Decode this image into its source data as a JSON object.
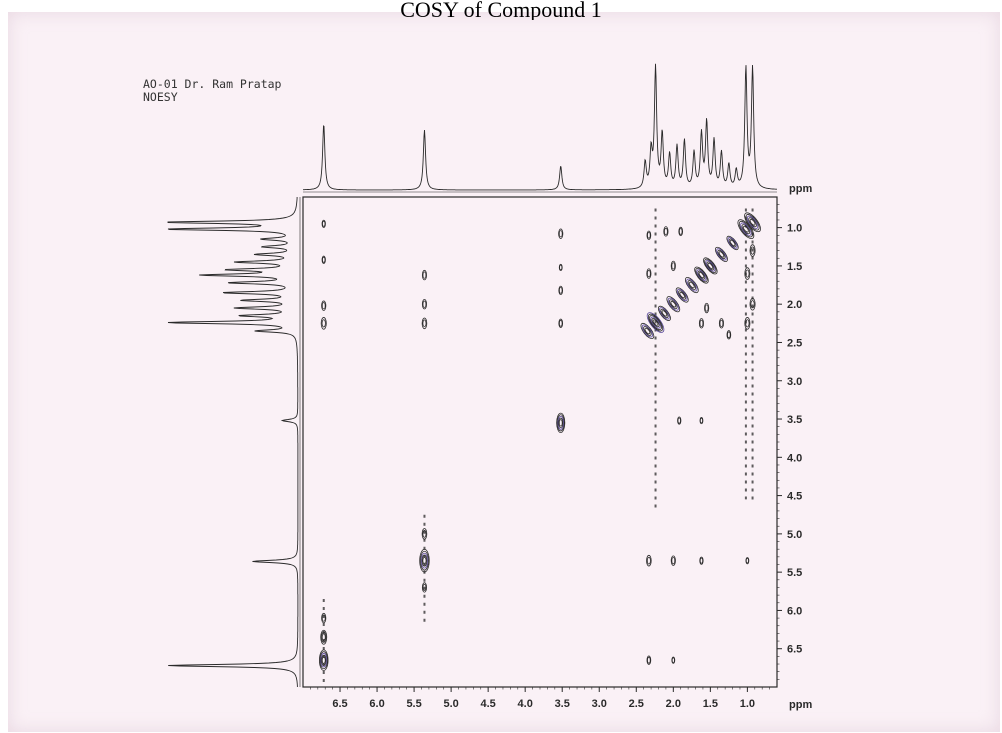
{
  "page": {
    "title": "COSY of Compound 1",
    "header_lines": [
      "AO-01 Dr. Ram Pratap",
      "NOESY"
    ],
    "background_color": "#faf1f6",
    "ink_color": "#2a2a2a",
    "contour_accent": "#5a4a9a"
  },
  "chart_data": {
    "type": "heatmap",
    "title": "COSY of Compound 1",
    "xlabel": "ppm",
    "ylabel": "ppm",
    "xlim": [
      7.0,
      0.6
    ],
    "ylim": [
      0.6,
      7.0
    ],
    "x_ticks": [
      "6.5",
      "6.0",
      "5.5",
      "5.0",
      "4.5",
      "4.0",
      "3.5",
      "3.0",
      "2.5",
      "2.0",
      "1.5",
      "1.0"
    ],
    "y_ticks": [
      "1.0",
      "1.5",
      "2.0",
      "2.5",
      "3.0",
      "3.5",
      "4.0",
      "4.5",
      "5.0",
      "5.5",
      "6.0",
      "6.5"
    ],
    "f2_projection_peaks": [
      {
        "ppm": 6.72,
        "height": 0.55
      },
      {
        "ppm": 5.36,
        "height": 0.5
      },
      {
        "ppm": 3.52,
        "height": 0.2
      },
      {
        "ppm": 2.38,
        "height": 0.22
      },
      {
        "ppm": 2.3,
        "height": 0.3
      },
      {
        "ppm": 2.24,
        "height": 1.0
      },
      {
        "ppm": 2.15,
        "height": 0.45
      },
      {
        "ppm": 2.05,
        "height": 0.28
      },
      {
        "ppm": 1.95,
        "height": 0.35
      },
      {
        "ppm": 1.85,
        "height": 0.4
      },
      {
        "ppm": 1.72,
        "height": 0.3
      },
      {
        "ppm": 1.62,
        "height": 0.45
      },
      {
        "ppm": 1.55,
        "height": 0.55
      },
      {
        "ppm": 1.45,
        "height": 0.4
      },
      {
        "ppm": 1.35,
        "height": 0.3
      },
      {
        "ppm": 1.25,
        "height": 0.2
      },
      {
        "ppm": 1.15,
        "height": 0.15
      },
      {
        "ppm": 1.02,
        "height": 1.0
      },
      {
        "ppm": 0.93,
        "height": 1.0
      }
    ],
    "f1_projection_peaks": [
      {
        "ppm": 0.93,
        "height": 1.0
      },
      {
        "ppm": 1.02,
        "height": 1.0
      },
      {
        "ppm": 1.15,
        "height": 0.25
      },
      {
        "ppm": 1.25,
        "height": 0.25
      },
      {
        "ppm": 1.35,
        "height": 0.3
      },
      {
        "ppm": 1.45,
        "height": 0.45
      },
      {
        "ppm": 1.55,
        "height": 0.5
      },
      {
        "ppm": 1.62,
        "height": 0.7
      },
      {
        "ppm": 1.72,
        "height": 0.5
      },
      {
        "ppm": 1.85,
        "height": 0.55
      },
      {
        "ppm": 1.95,
        "height": 0.4
      },
      {
        "ppm": 2.05,
        "height": 0.45
      },
      {
        "ppm": 2.15,
        "height": 0.4
      },
      {
        "ppm": 2.24,
        "height": 1.0
      },
      {
        "ppm": 2.35,
        "height": 0.3
      },
      {
        "ppm": 3.52,
        "height": 0.12
      },
      {
        "ppm": 5.36,
        "height": 0.35
      },
      {
        "ppm": 6.72,
        "height": 1.0
      }
    ],
    "cross_peaks": [
      {
        "x": 6.72,
        "y": 6.65,
        "size": 1.6
      },
      {
        "x": 6.72,
        "y": 6.35,
        "size": 1.0
      },
      {
        "x": 6.72,
        "y": 6.1,
        "size": 0.6
      },
      {
        "x": 6.72,
        "y": 2.25,
        "size": 0.8
      },
      {
        "x": 6.72,
        "y": 2.02,
        "size": 0.6
      },
      {
        "x": 6.72,
        "y": 1.42,
        "size": 0.4
      },
      {
        "x": 6.72,
        "y": 0.95,
        "size": 0.4
      },
      {
        "x": 5.36,
        "y": 5.35,
        "size": 1.8
      },
      {
        "x": 5.36,
        "y": 5.0,
        "size": 0.7
      },
      {
        "x": 5.36,
        "y": 5.7,
        "size": 0.6
      },
      {
        "x": 5.36,
        "y": 2.25,
        "size": 0.7
      },
      {
        "x": 5.36,
        "y": 2.0,
        "size": 0.6
      },
      {
        "x": 5.36,
        "y": 1.62,
        "size": 0.6
      },
      {
        "x": 3.52,
        "y": 3.55,
        "size": 1.5
      },
      {
        "x": 3.52,
        "y": 2.25,
        "size": 0.5
      },
      {
        "x": 3.52,
        "y": 1.82,
        "size": 0.5
      },
      {
        "x": 3.52,
        "y": 1.52,
        "size": 0.3
      },
      {
        "x": 3.52,
        "y": 1.08,
        "size": 0.6
      },
      {
        "x": 2.33,
        "y": 5.35,
        "size": 0.7
      },
      {
        "x": 2.0,
        "y": 5.35,
        "size": 0.6
      },
      {
        "x": 1.62,
        "y": 5.35,
        "size": 0.4
      },
      {
        "x": 2.33,
        "y": 6.65,
        "size": 0.5
      },
      {
        "x": 2.0,
        "y": 6.65,
        "size": 0.3
      },
      {
        "x": 1.92,
        "y": 3.52,
        "size": 0.4
      },
      {
        "x": 1.62,
        "y": 3.52,
        "size": 0.3
      },
      {
        "x": 1.0,
        "y": 5.35,
        "size": 0.3
      },
      {
        "x": 2.33,
        "y": 1.1,
        "size": 0.5
      },
      {
        "x": 2.1,
        "y": 1.05,
        "size": 0.6
      },
      {
        "x": 1.9,
        "y": 1.05,
        "size": 0.5
      },
      {
        "x": 2.33,
        "y": 1.6,
        "size": 0.6
      },
      {
        "x": 2.0,
        "y": 1.5,
        "size": 0.6
      },
      {
        "x": 1.62,
        "y": 2.25,
        "size": 0.6
      },
      {
        "x": 1.55,
        "y": 2.05,
        "size": 0.6
      },
      {
        "x": 1.35,
        "y": 2.25,
        "size": 0.6
      },
      {
        "x": 1.25,
        "y": 2.4,
        "size": 0.5
      },
      {
        "x": 1.0,
        "y": 2.25,
        "size": 0.8
      },
      {
        "x": 0.93,
        "y": 2.0,
        "size": 0.8
      },
      {
        "x": 1.0,
        "y": 1.6,
        "size": 0.8
      },
      {
        "x": 0.93,
        "y": 1.3,
        "size": 0.8
      }
    ],
    "diagonal_peaks": [
      {
        "ppm": 0.93,
        "size": 1.8
      },
      {
        "ppm": 1.02,
        "size": 1.8
      },
      {
        "ppm": 1.2,
        "size": 1.2
      },
      {
        "ppm": 1.35,
        "size": 1.3
      },
      {
        "ppm": 1.5,
        "size": 1.5
      },
      {
        "ppm": 1.62,
        "size": 1.5
      },
      {
        "ppm": 1.75,
        "size": 1.4
      },
      {
        "ppm": 1.88,
        "size": 1.3
      },
      {
        "ppm": 2.0,
        "size": 1.4
      },
      {
        "ppm": 2.12,
        "size": 1.3
      },
      {
        "ppm": 2.24,
        "size": 1.9
      },
      {
        "ppm": 2.35,
        "size": 1.4
      }
    ],
    "streak_columns": [
      {
        "ppm": 2.24,
        "from": 0.75,
        "to": 4.7
      },
      {
        "ppm": 1.02,
        "from": 0.75,
        "to": 4.55
      },
      {
        "ppm": 0.93,
        "from": 0.75,
        "to": 4.6
      },
      {
        "ppm": 6.72,
        "from": 5.85,
        "to": 6.95
      },
      {
        "ppm": 5.36,
        "from": 4.75,
        "to": 6.2
      }
    ]
  }
}
